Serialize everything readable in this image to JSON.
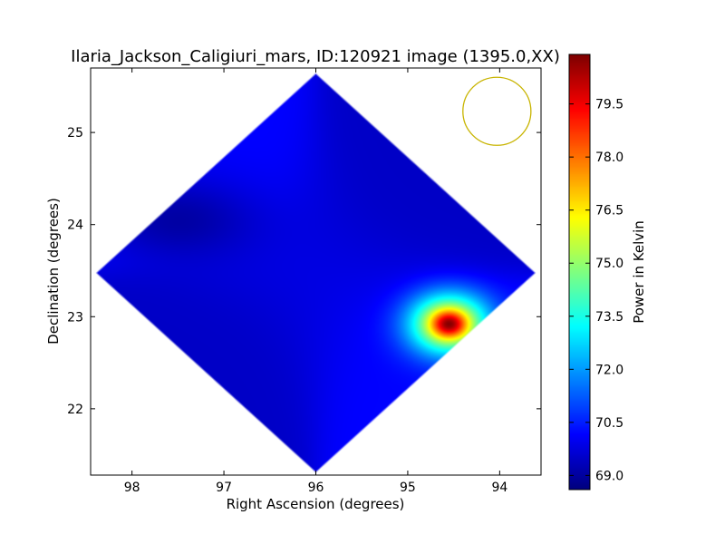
{
  "chart_data": {
    "type": "heatmap",
    "title": "Ilaria_Jackson_Caligiuri_mars, ID:120921 image (1395.0,XX)",
    "xlabel": "Right Ascension (degrees)",
    "ylabel": "Declination (degrees)",
    "x_ticks": [
      98,
      97,
      96,
      95,
      94
    ],
    "x_tick_labels": [
      "98",
      "97",
      "96",
      "95",
      "94"
    ],
    "y_ticks": [
      22,
      23,
      24,
      25
    ],
    "y_tick_labels": [
      "22",
      "23",
      "24",
      "25"
    ],
    "xlim": [
      98.45,
      93.55
    ],
    "ylim": [
      21.28,
      25.7
    ],
    "x_inverted": true,
    "colorbar": {
      "label": "Power in Kelvin",
      "min": 68.6,
      "max": 80.9,
      "ticks": [
        69.0,
        70.5,
        72.0,
        73.5,
        75.0,
        76.5,
        78.0,
        79.5
      ],
      "tick_labels": [
        "69.0",
        "70.5",
        "72.0",
        "73.5",
        "75.0",
        "76.5",
        "78.0",
        "79.5"
      ],
      "colormap": "jet"
    },
    "footprint": {
      "shape": "diamond",
      "vertices_ra_dec": [
        [
          95.95,
          25.65
        ],
        [
          93.6,
          23.5
        ],
        [
          95.95,
          21.3
        ],
        [
          98.4,
          23.5
        ]
      ]
    },
    "hotspot": {
      "ra": 94.55,
      "dec": 22.92,
      "peak_kelvin": 80.5
    },
    "cold_region": {
      "ra": 97.5,
      "dec": 24.05,
      "min_kelvin": 68.7
    },
    "baseline_kelvin": 69.8,
    "beam_circle": {
      "ra": 94.03,
      "dec": 25.23,
      "radius_deg": 0.37,
      "color": "#c8b400"
    }
  }
}
